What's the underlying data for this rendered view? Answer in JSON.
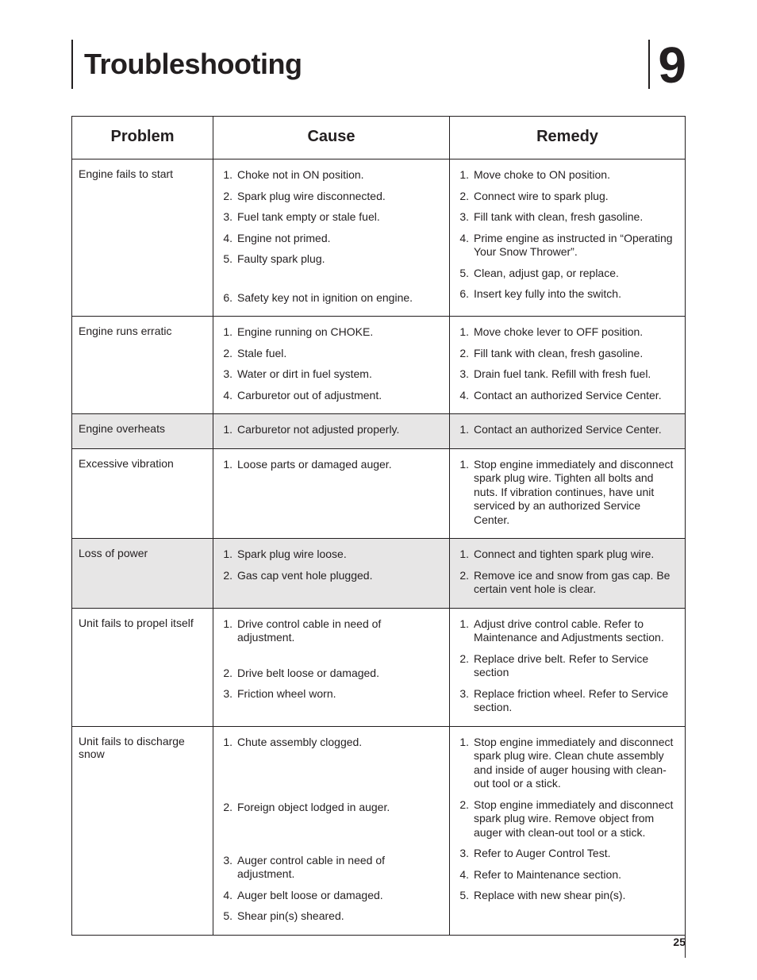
{
  "page_number": "25",
  "section_title": "Troubleshooting",
  "section_number": "9",
  "columns": {
    "problem": "Problem",
    "cause": "Cause",
    "remedy": "Remedy"
  },
  "rows": [
    {
      "problem": "Engine fails to start",
      "shaded": false,
      "causes": [
        "Choke not in ON position.",
        "Spark plug wire disconnected.",
        "Fuel tank empty or stale fuel.",
        "Engine not primed.",
        "Faulty spark plug.",
        "Safety key not in ignition on engine."
      ],
      "remedies": [
        "Move choke to ON position.",
        "Connect wire to spark plug.",
        "Fill tank with clean, fresh gasoline.",
        "Prime engine as instructed in “Operating Your Snow Thrower”.",
        "Clean, adjust gap, or replace.",
        "Insert key fully into the switch."
      ]
    },
    {
      "problem": "Engine runs erratic",
      "shaded": false,
      "causes": [
        "Engine running on CHOKE.",
        "Stale fuel.",
        "Water or dirt in fuel system.",
        "Carburetor out of adjustment."
      ],
      "remedies": [
        "Move choke lever to OFF position.",
        "Fill tank with clean, fresh gasoline.",
        "Drain fuel tank. Refill with fresh fuel.",
        "Contact an authorized Service Center."
      ]
    },
    {
      "problem": "Engine overheats",
      "shaded": true,
      "causes": [
        "Carburetor not adjusted properly."
      ],
      "remedies": [
        "Contact an authorized Service Center."
      ]
    },
    {
      "problem": "Excessive vibration",
      "shaded": false,
      "causes": [
        "Loose parts or damaged auger."
      ],
      "remedies": [
        "Stop engine immediately and disconnect spark plug wire. Tighten all bolts and nuts. If vibration continues, have unit serviced by an authorized Service Center."
      ]
    },
    {
      "problem": "Loss of power",
      "shaded": true,
      "causes": [
        "Spark plug wire loose.",
        "Gas cap vent hole plugged."
      ],
      "remedies": [
        "Connect and tighten spark plug wire.",
        "Remove ice and snow from gas cap. Be certain vent hole is clear."
      ]
    },
    {
      "problem": "Unit fails to propel itself",
      "shaded": false,
      "causes": [
        "Drive control cable in need of adjustment.",
        "Drive belt loose or damaged.",
        "Friction wheel worn."
      ],
      "remedies": [
        "Adjust drive control cable. Refer to Maintenance and Adjustments section.",
        "Replace drive belt. Refer to Service section",
        "Replace friction wheel. Refer to Service section."
      ]
    },
    {
      "problem": "Unit fails to discharge snow",
      "shaded": false,
      "causes": [
        "Chute assembly clogged.",
        "Foreign object lodged in auger.",
        "Auger control cable in need of adjustment.",
        "Auger belt loose or damaged.",
        "Shear pin(s) sheared."
      ],
      "remedies": [
        "Stop engine immediately and disconnect spark plug wire. Clean chute assembly and inside of auger housing with clean-out tool or a stick.",
        "Stop engine immediately and disconnect spark plug wire. Remove object from auger with clean-out tool or a stick.",
        "Refer to Auger Control Test.",
        "Refer to Maintenance section.",
        "Replace with new shear pin(s)."
      ]
    }
  ]
}
